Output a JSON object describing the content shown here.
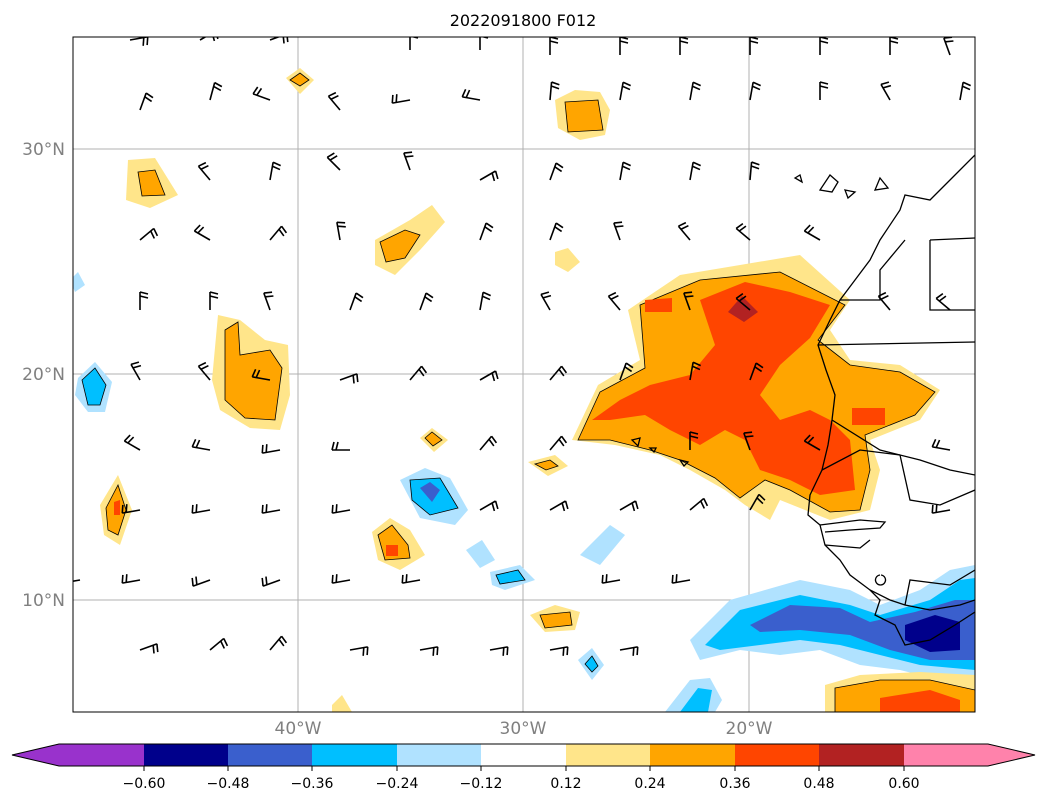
{
  "title": "2022091800 F012",
  "lat_labels": [
    "30°N",
    "20°N",
    "10°N"
  ],
  "lon_labels": [
    "40°W",
    "30°W",
    "20°W"
  ],
  "colorbar": {
    "labels": [
      "−0.60",
      "−0.48",
      "−0.36",
      "−0.24",
      "−0.12",
      "0.12",
      "0.24",
      "0.36",
      "0.48",
      "0.60"
    ],
    "colors": [
      "#9932cc",
      "#00008b",
      "#3a5fcd",
      "#00bfff",
      "#b0e2ff",
      "#ffffff",
      "#ffe58a",
      "#ffa500",
      "#ff4500",
      "#b22222",
      "#ff82ab"
    ]
  },
  "palette": {
    "yellow": "#ffe58a",
    "orange": "#ffa500",
    "red": "#ff4500",
    "darkred": "#b22222",
    "lightblue": "#b0e2ff",
    "cyan": "#00bfff",
    "blue": "#3a5fcd",
    "navy": "#00008b"
  }
}
